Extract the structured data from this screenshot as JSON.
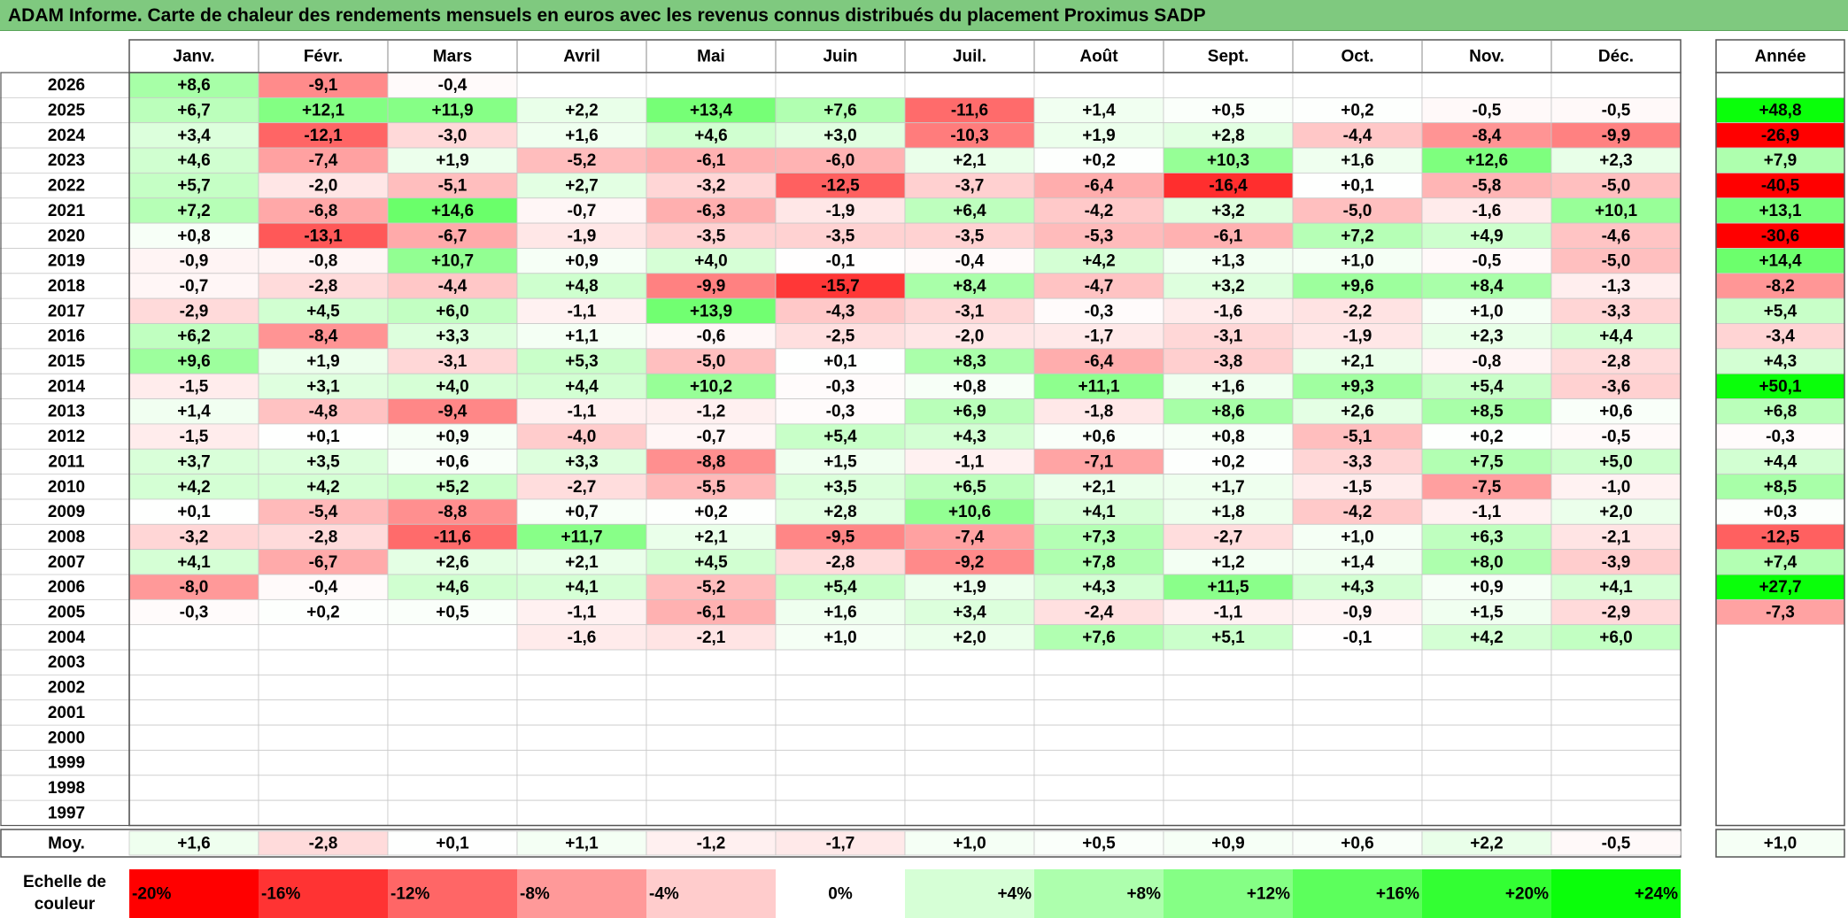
{
  "title": "ADAM Informe. Carte de chaleur des rendements mensuels en euros avec les revenus connus distribués du placement Proximus SADP",
  "chart_data": {
    "type": "heatmap",
    "title": "ADAM Informe. Carte de chaleur des rendements mensuels en euros avec les revenus connus distribués du placement Proximus SADP",
    "columns": [
      "Janv.",
      "Févr.",
      "Mars",
      "Avril",
      "Mai",
      "Juin",
      "Juil.",
      "Août",
      "Sept.",
      "Oct.",
      "Nov.",
      "Déc."
    ],
    "annual_label": "Année",
    "rows": [
      {
        "year": "2026",
        "values": [
          "+8,6",
          "-9,1",
          "-0,4",
          "",
          "",
          "",
          "",
          "",
          "",
          "",
          "",
          ""
        ],
        "annual": ""
      },
      {
        "year": "2025",
        "values": [
          "+6,7",
          "+12,1",
          "+11,9",
          "+2,2",
          "+13,4",
          "+7,6",
          "-11,6",
          "+1,4",
          "+0,5",
          "+0,2",
          "-0,5",
          "-0,5"
        ],
        "annual": "+48,8"
      },
      {
        "year": "2024",
        "values": [
          "+3,4",
          "-12,1",
          "-3,0",
          "+1,6",
          "+4,6",
          "+3,0",
          "-10,3",
          "+1,9",
          "+2,8",
          "-4,4",
          "-8,4",
          "-9,9"
        ],
        "annual": "-26,9"
      },
      {
        "year": "2023",
        "values": [
          "+4,6",
          "-7,4",
          "+1,9",
          "-5,2",
          "-6,1",
          "-6,0",
          "+2,1",
          "+0,2",
          "+10,3",
          "+1,6",
          "+12,6",
          "+2,3"
        ],
        "annual": "+7,9"
      },
      {
        "year": "2022",
        "values": [
          "+5,7",
          "-2,0",
          "-5,1",
          "+2,7",
          "-3,2",
          "-12,5",
          "-3,7",
          "-6,4",
          "-16,4",
          "+0,1",
          "-5,8",
          "-5,0"
        ],
        "annual": "-40,5"
      },
      {
        "year": "2021",
        "values": [
          "+7,2",
          "-6,8",
          "+14,6",
          "-0,7",
          "-6,3",
          "-1,9",
          "+6,4",
          "-4,2",
          "+3,2",
          "-5,0",
          "-1,6",
          "+10,1"
        ],
        "annual": "+13,1"
      },
      {
        "year": "2020",
        "values": [
          "+0,8",
          "-13,1",
          "-6,7",
          "-1,9",
          "-3,5",
          "-3,5",
          "-3,5",
          "-5,3",
          "-6,1",
          "+7,2",
          "+4,9",
          "-4,6"
        ],
        "annual": "-30,6"
      },
      {
        "year": "2019",
        "values": [
          "-0,9",
          "-0,8",
          "+10,7",
          "+0,9",
          "+4,0",
          "-0,1",
          "-0,4",
          "+4,2",
          "+1,3",
          "+1,0",
          "-0,5",
          "-5,0"
        ],
        "annual": "+14,4"
      },
      {
        "year": "2018",
        "values": [
          "-0,7",
          "-2,8",
          "-4,4",
          "+4,8",
          "-9,9",
          "-15,7",
          "+8,4",
          "-4,7",
          "+3,2",
          "+9,6",
          "+8,4",
          "-1,3"
        ],
        "annual": "-8,2"
      },
      {
        "year": "2017",
        "values": [
          "-2,9",
          "+4,5",
          "+6,0",
          "-1,1",
          "+13,9",
          "-4,3",
          "-3,1",
          "-0,3",
          "-1,6",
          "-2,2",
          "+1,0",
          "-3,3"
        ],
        "annual": "+5,4"
      },
      {
        "year": "2016",
        "values": [
          "+6,2",
          "-8,4",
          "+3,3",
          "+1,1",
          "-0,6",
          "-2,5",
          "-2,0",
          "-1,7",
          "-3,1",
          "-1,9",
          "+2,3",
          "+4,4"
        ],
        "annual": "-3,4"
      },
      {
        "year": "2015",
        "values": [
          "+9,6",
          "+1,9",
          "-3,1",
          "+5,3",
          "-5,0",
          "+0,1",
          "+8,3",
          "-6,4",
          "-3,8",
          "+2,1",
          "-0,8",
          "-2,8"
        ],
        "annual": "+4,3"
      },
      {
        "year": "2014",
        "values": [
          "-1,5",
          "+3,1",
          "+4,0",
          "+4,4",
          "+10,2",
          "-0,3",
          "+0,8",
          "+11,1",
          "+1,6",
          "+9,3",
          "+5,4",
          "-3,6"
        ],
        "annual": "+50,1"
      },
      {
        "year": "2013",
        "values": [
          "+1,4",
          "-4,8",
          "-9,4",
          "-1,1",
          "-1,2",
          "-0,3",
          "+6,9",
          "-1,8",
          "+8,6",
          "+2,6",
          "+8,5",
          "+0,6"
        ],
        "annual": "+6,8"
      },
      {
        "year": "2012",
        "values": [
          "-1,5",
          "+0,1",
          "+0,9",
          "-4,0",
          "-0,7",
          "+5,4",
          "+4,3",
          "+0,6",
          "+0,8",
          "-5,1",
          "+0,2",
          "-0,5"
        ],
        "annual": "-0,3"
      },
      {
        "year": "2011",
        "values": [
          "+3,7",
          "+3,5",
          "+0,6",
          "+3,3",
          "-8,8",
          "+1,5",
          "-1,1",
          "-7,1",
          "+0,2",
          "-3,3",
          "+7,5",
          "+5,0"
        ],
        "annual": "+4,4"
      },
      {
        "year": "2010",
        "values": [
          "+4,2",
          "+4,2",
          "+5,2",
          "-2,7",
          "-5,5",
          "+3,5",
          "+6,5",
          "+2,1",
          "+1,7",
          "-1,5",
          "-7,5",
          "-1,0"
        ],
        "annual": "+8,5"
      },
      {
        "year": "2009",
        "values": [
          "+0,1",
          "-5,4",
          "-8,8",
          "+0,7",
          "+0,2",
          "+2,8",
          "+10,6",
          "+4,1",
          "+1,8",
          "-4,2",
          "-1,1",
          "+2,0"
        ],
        "annual": "+0,3"
      },
      {
        "year": "2008",
        "values": [
          "-3,2",
          "-2,8",
          "-11,6",
          "+11,7",
          "+2,1",
          "-9,5",
          "-7,4",
          "+7,3",
          "-2,7",
          "+1,0",
          "+6,3",
          "-2,1"
        ],
        "annual": "-12,5"
      },
      {
        "year": "2007",
        "values": [
          "+4,1",
          "-6,7",
          "+2,6",
          "+2,1",
          "+4,5",
          "-2,8",
          "-9,2",
          "+7,8",
          "+1,2",
          "+1,4",
          "+8,0",
          "-3,9"
        ],
        "annual": "+7,4"
      },
      {
        "year": "2006",
        "values": [
          "-8,0",
          "-0,4",
          "+4,6",
          "+4,1",
          "-5,2",
          "+5,4",
          "+1,9",
          "+4,3",
          "+11,5",
          "+4,3",
          "+0,9",
          "+4,1"
        ],
        "annual": "+27,7"
      },
      {
        "year": "2005",
        "values": [
          "-0,3",
          "+0,2",
          "+0,5",
          "-1,1",
          "-6,1",
          "+1,6",
          "+3,4",
          "-2,4",
          "-1,1",
          "-0,9",
          "+1,5",
          "-2,9"
        ],
        "annual": "-7,3"
      },
      {
        "year": "2004",
        "values": [
          "",
          "",
          "",
          "-1,6",
          "-2,1",
          "+1,0",
          "+2,0",
          "+7,6",
          "+5,1",
          "-0,1",
          "+4,2",
          "+6,0"
        ],
        "annual": ""
      },
      {
        "year": "2003",
        "values": [
          "",
          "",
          "",
          "",
          "",
          "",
          "",
          "",
          "",
          "",
          "",
          ""
        ],
        "annual": ""
      },
      {
        "year": "2002",
        "values": [
          "",
          "",
          "",
          "",
          "",
          "",
          "",
          "",
          "",
          "",
          "",
          ""
        ],
        "annual": ""
      },
      {
        "year": "2001",
        "values": [
          "",
          "",
          "",
          "",
          "",
          "",
          "",
          "",
          "",
          "",
          "",
          ""
        ],
        "annual": ""
      },
      {
        "year": "2000",
        "values": [
          "",
          "",
          "",
          "",
          "",
          "",
          "",
          "",
          "",
          "",
          "",
          ""
        ],
        "annual": ""
      },
      {
        "year": "1999",
        "values": [
          "",
          "",
          "",
          "",
          "",
          "",
          "",
          "",
          "",
          "",
          "",
          ""
        ],
        "annual": ""
      },
      {
        "year": "1998",
        "values": [
          "",
          "",
          "",
          "",
          "",
          "",
          "",
          "",
          "",
          "",
          "",
          ""
        ],
        "annual": ""
      },
      {
        "year": "1997",
        "values": [
          "",
          "",
          "",
          "",
          "",
          "",
          "",
          "",
          "",
          "",
          "",
          ""
        ],
        "annual": ""
      }
    ],
    "average": {
      "label": "Moy.",
      "values": [
        "+1,6",
        "-2,8",
        "+0,1",
        "+1,1",
        "-1,2",
        "-1,7",
        "+1,0",
        "+0,5",
        "+0,9",
        "+0,6",
        "+2,2",
        "-0,5"
      ],
      "annual": "+1,0"
    },
    "scale": {
      "label_line1": "Echelle de",
      "label_line2": "couleur",
      "steps": [
        {
          "label": "-20%",
          "value": -20,
          "color": "#ff0000"
        },
        {
          "label": "-16%",
          "value": -16,
          "color": "#ff3333"
        },
        {
          "label": "-12%",
          "value": -12,
          "color": "#ff6666"
        },
        {
          "label": "-8%",
          "value": -8,
          "color": "#ff9999"
        },
        {
          "label": "-4%",
          "value": -4,
          "color": "#ffcccc"
        },
        {
          "label": "0%",
          "value": 0,
          "color": "#ffffff"
        },
        {
          "label": "+4%",
          "value": 4,
          "color": "#d6ffd6"
        },
        {
          "label": "+8%",
          "value": 8,
          "color": "#adffad"
        },
        {
          "label": "+12%",
          "value": 12,
          "color": "#85ff85"
        },
        {
          "label": "+16%",
          "value": 16,
          "color": "#5cff5c"
        },
        {
          "label": "+20%",
          "value": 20,
          "color": "#33ff33"
        },
        {
          "label": "+24%",
          "value": 24,
          "color": "#0aff0a"
        }
      ]
    }
  }
}
